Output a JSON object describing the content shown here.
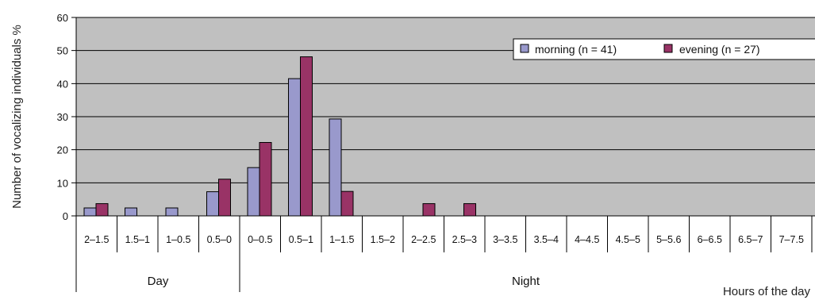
{
  "chart_data": {
    "type": "bar",
    "ylabel": "Number of vocalizing individuals %",
    "xlabel": "Hours of the day",
    "ylim": [
      0,
      60
    ],
    "yticks": [
      0,
      10,
      20,
      30,
      40,
      50,
      60
    ],
    "grid": true,
    "legend_position": "top-right",
    "categories": [
      "2–1.5",
      "1.5–1",
      "1–0.5",
      "0.5–0",
      "0–0.5",
      "0.5–1",
      "1–1.5",
      "1.5–2",
      "2–2.5",
      "2.5–3",
      "3–3.5",
      "3.5–4",
      "4–4.5",
      "4.5–5",
      "5–5.6",
      "6–6.5",
      "6.5–7",
      "7–7.5"
    ],
    "groups": [
      {
        "label": "Day",
        "from": 0,
        "to": 3
      },
      {
        "label": "Night",
        "from": 4,
        "to": 17
      }
    ],
    "series": [
      {
        "name": "morning (n = 41)",
        "color": "#9999cc",
        "values": [
          2.4,
          2.4,
          2.4,
          7.3,
          14.6,
          41.5,
          29.3,
          0,
          0,
          0,
          0,
          0,
          0,
          0,
          0,
          0,
          0,
          0
        ]
      },
      {
        "name": "evening (n = 27)",
        "color": "#993366",
        "values": [
          3.7,
          0,
          0,
          11.1,
          22.2,
          48.1,
          7.4,
          0,
          3.7,
          3.7,
          0,
          0,
          0,
          0,
          0,
          0,
          0,
          0
        ]
      }
    ],
    "colors": {
      "plot_bg": "#c0c0c0",
      "grid": "#000000",
      "bar_edge": "#000000"
    }
  }
}
